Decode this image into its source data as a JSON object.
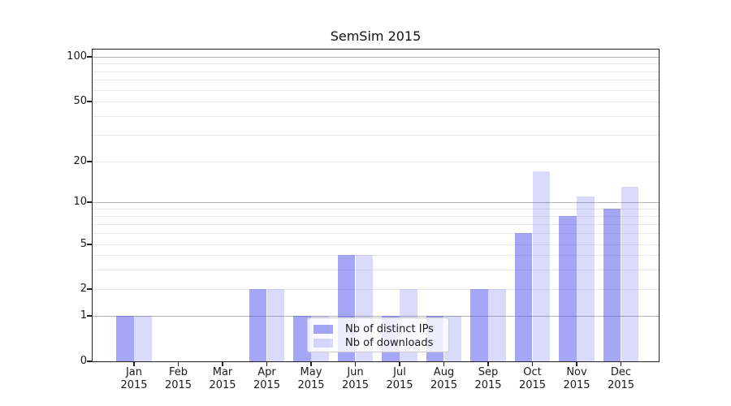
{
  "chart_data": {
    "type": "bar",
    "title": "SemSim 2015",
    "x": [
      {
        "month": "Jan",
        "year": "2015"
      },
      {
        "month": "Feb",
        "year": "2015"
      },
      {
        "month": "Mar",
        "year": "2015"
      },
      {
        "month": "Apr",
        "year": "2015"
      },
      {
        "month": "May",
        "year": "2015"
      },
      {
        "month": "Jun",
        "year": "2015"
      },
      {
        "month": "Jul",
        "year": "2015"
      },
      {
        "month": "Aug",
        "year": "2015"
      },
      {
        "month": "Sep",
        "year": "2015"
      },
      {
        "month": "Oct",
        "year": "2015"
      },
      {
        "month": "Nov",
        "year": "2015"
      },
      {
        "month": "Dec",
        "year": "2015"
      }
    ],
    "series": [
      {
        "name": "Nb of distinct IPs",
        "color": "rgba(60,60,235,0.46)",
        "values": [
          1,
          0,
          0,
          2,
          1,
          4,
          1,
          1,
          2,
          6,
          8,
          9
        ]
      },
      {
        "name": "Nb of downloads",
        "color": "rgba(60,60,235,0.19)",
        "values": [
          1,
          0,
          0,
          2,
          1,
          4,
          2,
          1,
          2,
          17,
          11,
          13
        ]
      }
    ],
    "y_axis": {
      "scale": "symlog-like (linear 0-1, log above)",
      "tick_values": [
        0,
        1,
        2,
        5,
        10,
        20,
        50,
        100
      ],
      "tick_labels": [
        "0",
        "1",
        "2",
        "5",
        "10",
        "20",
        "50",
        "100"
      ],
      "decade_grid_values": [
        1,
        10,
        100
      ],
      "minor_grid_values": [
        3,
        4,
        6,
        7,
        8,
        9,
        30,
        40,
        60,
        70,
        80,
        90
      ],
      "range": [
        0,
        115
      ]
    },
    "legend_position": "lower center",
    "grid": true,
    "colors": {
      "grid_major": "#b5b5b5",
      "grid_minor": "#e9e9e9",
      "spine": "#222222",
      "text": "#1a1a1a",
      "legend_bg": "rgba(255,255,255,0.8)",
      "legend_border": "#cccccc"
    }
  }
}
